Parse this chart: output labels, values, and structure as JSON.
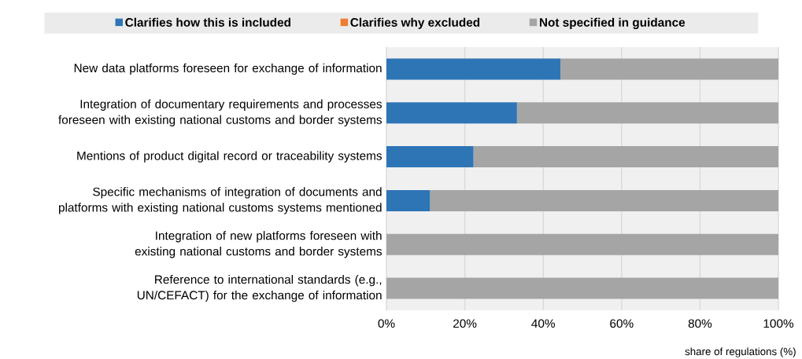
{
  "chart_data": {
    "type": "bar",
    "orientation": "horizontal",
    "stacked": true,
    "categories": [
      "New data platforms foreseen for exchange of information",
      "Integration of documentary requirements and processes foreseen with existing national customs and border systems",
      "Mentions of product digital record or traceability systems",
      "Specific mechanisms of integration of documents and platforms with existing national customs systems mentioned",
      "Integration of new platforms foreseen with existing national customs and border systems",
      "Reference to international standards (e.g., UN/CEFACT) for the exchange of information"
    ],
    "series": [
      {
        "name": "Clarifies how this is included",
        "color": "#2e75b6",
        "values": [
          44.4,
          33.3,
          22.2,
          11.1,
          0,
          0
        ]
      },
      {
        "name": "Clarifies why excluded",
        "color": "#ed7d31",
        "values": [
          0,
          0,
          0,
          0,
          0,
          0
        ]
      },
      {
        "name": "Not specified in guidance",
        "color": "#a5a5a5",
        "values": [
          55.6,
          66.7,
          77.8,
          88.9,
          100,
          100
        ]
      }
    ],
    "xlim": [
      0,
      100
    ],
    "xticks": [
      {
        "value": 0,
        "label": "0%"
      },
      {
        "value": 20,
        "label": "20%"
      },
      {
        "value": 40,
        "label": "40%"
      },
      {
        "value": 60,
        "label": "60%"
      },
      {
        "value": 80,
        "label": "80%"
      },
      {
        "value": 100,
        "label": "100%"
      }
    ],
    "xlabel": "share of regulations (%)",
    "grid": "x",
    "legend": "top"
  }
}
